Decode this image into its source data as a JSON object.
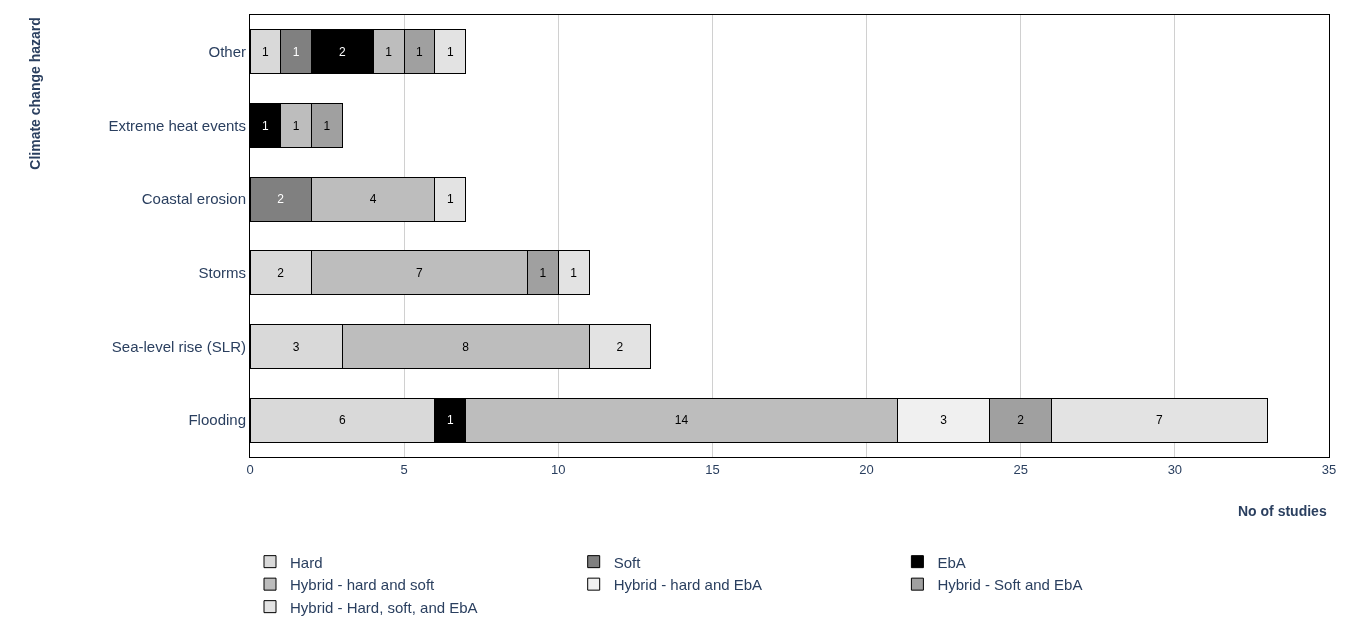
{
  "chart_data": {
    "type": "bar",
    "orientation": "horizontal",
    "stacked": true,
    "xlabel": "No of studies",
    "ylabel": "Climate change hazard",
    "categories": [
      "Other",
      "Extreme heat events",
      "Coastal erosion",
      "Storms",
      "Sea-level rise (SLR)",
      "Flooding"
    ],
    "series": [
      {
        "name": "Hard",
        "color": "#d9d9d9",
        "values": [
          1,
          null,
          null,
          2,
          3,
          6
        ]
      },
      {
        "name": "Soft",
        "color": "#808080",
        "values": [
          1,
          null,
          2,
          null,
          null,
          null
        ]
      },
      {
        "name": "EbA",
        "color": "#000000",
        "values": [
          2,
          1,
          null,
          null,
          null,
          1
        ]
      },
      {
        "name": "Hybrid - hard and soft",
        "color": "#bdbdbd",
        "values": [
          1,
          1,
          4,
          7,
          8,
          14
        ]
      },
      {
        "name": "Hybrid - hard and EbA",
        "color": "#f0f0f0",
        "values": [
          null,
          null,
          null,
          null,
          null,
          3
        ]
      },
      {
        "name": "Hybrid - Soft and EbA",
        "color": "#a0a0a0",
        "values": [
          1,
          1,
          null,
          1,
          null,
          2
        ]
      },
      {
        "name": "Hybrid - Hard, soft, and EbA",
        "color": "#e3e3e3",
        "values": [
          1,
          null,
          1,
          1,
          2,
          7
        ]
      }
    ],
    "xlim": [
      0,
      35
    ],
    "xticks": [
      0,
      5,
      10,
      15,
      20,
      25,
      30,
      35
    ],
    "grid": "x",
    "legend": "bottom",
    "data_labels": true
  }
}
